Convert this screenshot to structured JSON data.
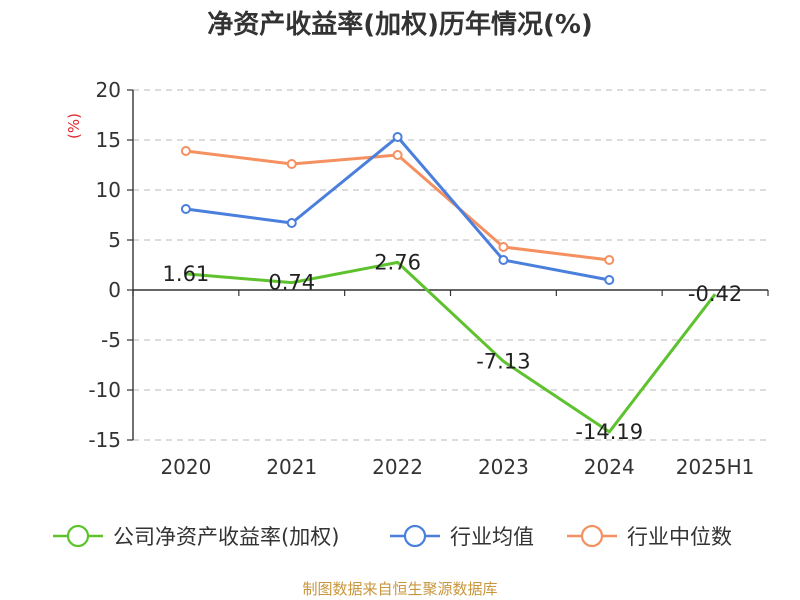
{
  "chart_data": {
    "type": "line",
    "title": "净资产收益率(加权)历年情况(%)",
    "ylabel": "(%)",
    "categories": [
      "2020",
      "2021",
      "2022",
      "2023",
      "2024",
      "2025H1"
    ],
    "ylim": [
      -15,
      20
    ],
    "yticks": [
      20,
      15,
      10,
      5,
      0,
      -5,
      -10,
      -15
    ],
    "grid": true,
    "legend_position": "bottom",
    "series": [
      {
        "name": "公司净资产收益率(加权)",
        "color": "#5ec22e",
        "values": [
          1.61,
          0.74,
          2.76,
          -7.13,
          -14.19,
          -0.42
        ],
        "labels": [
          "1.61",
          "0.74",
          "2.76",
          "-7.13",
          "-14.19",
          "-0.42"
        ]
      },
      {
        "name": "行业均值",
        "color": "#4a7fdc",
        "values": [
          8.1,
          6.7,
          15.3,
          3.0,
          1.0,
          null
        ]
      },
      {
        "name": "行业中位数",
        "color": "#f59060",
        "values": [
          13.9,
          12.6,
          13.5,
          4.3,
          3.0,
          null
        ]
      }
    ]
  },
  "footer": {
    "source": "制图数据来自恒生聚源数据库"
  }
}
